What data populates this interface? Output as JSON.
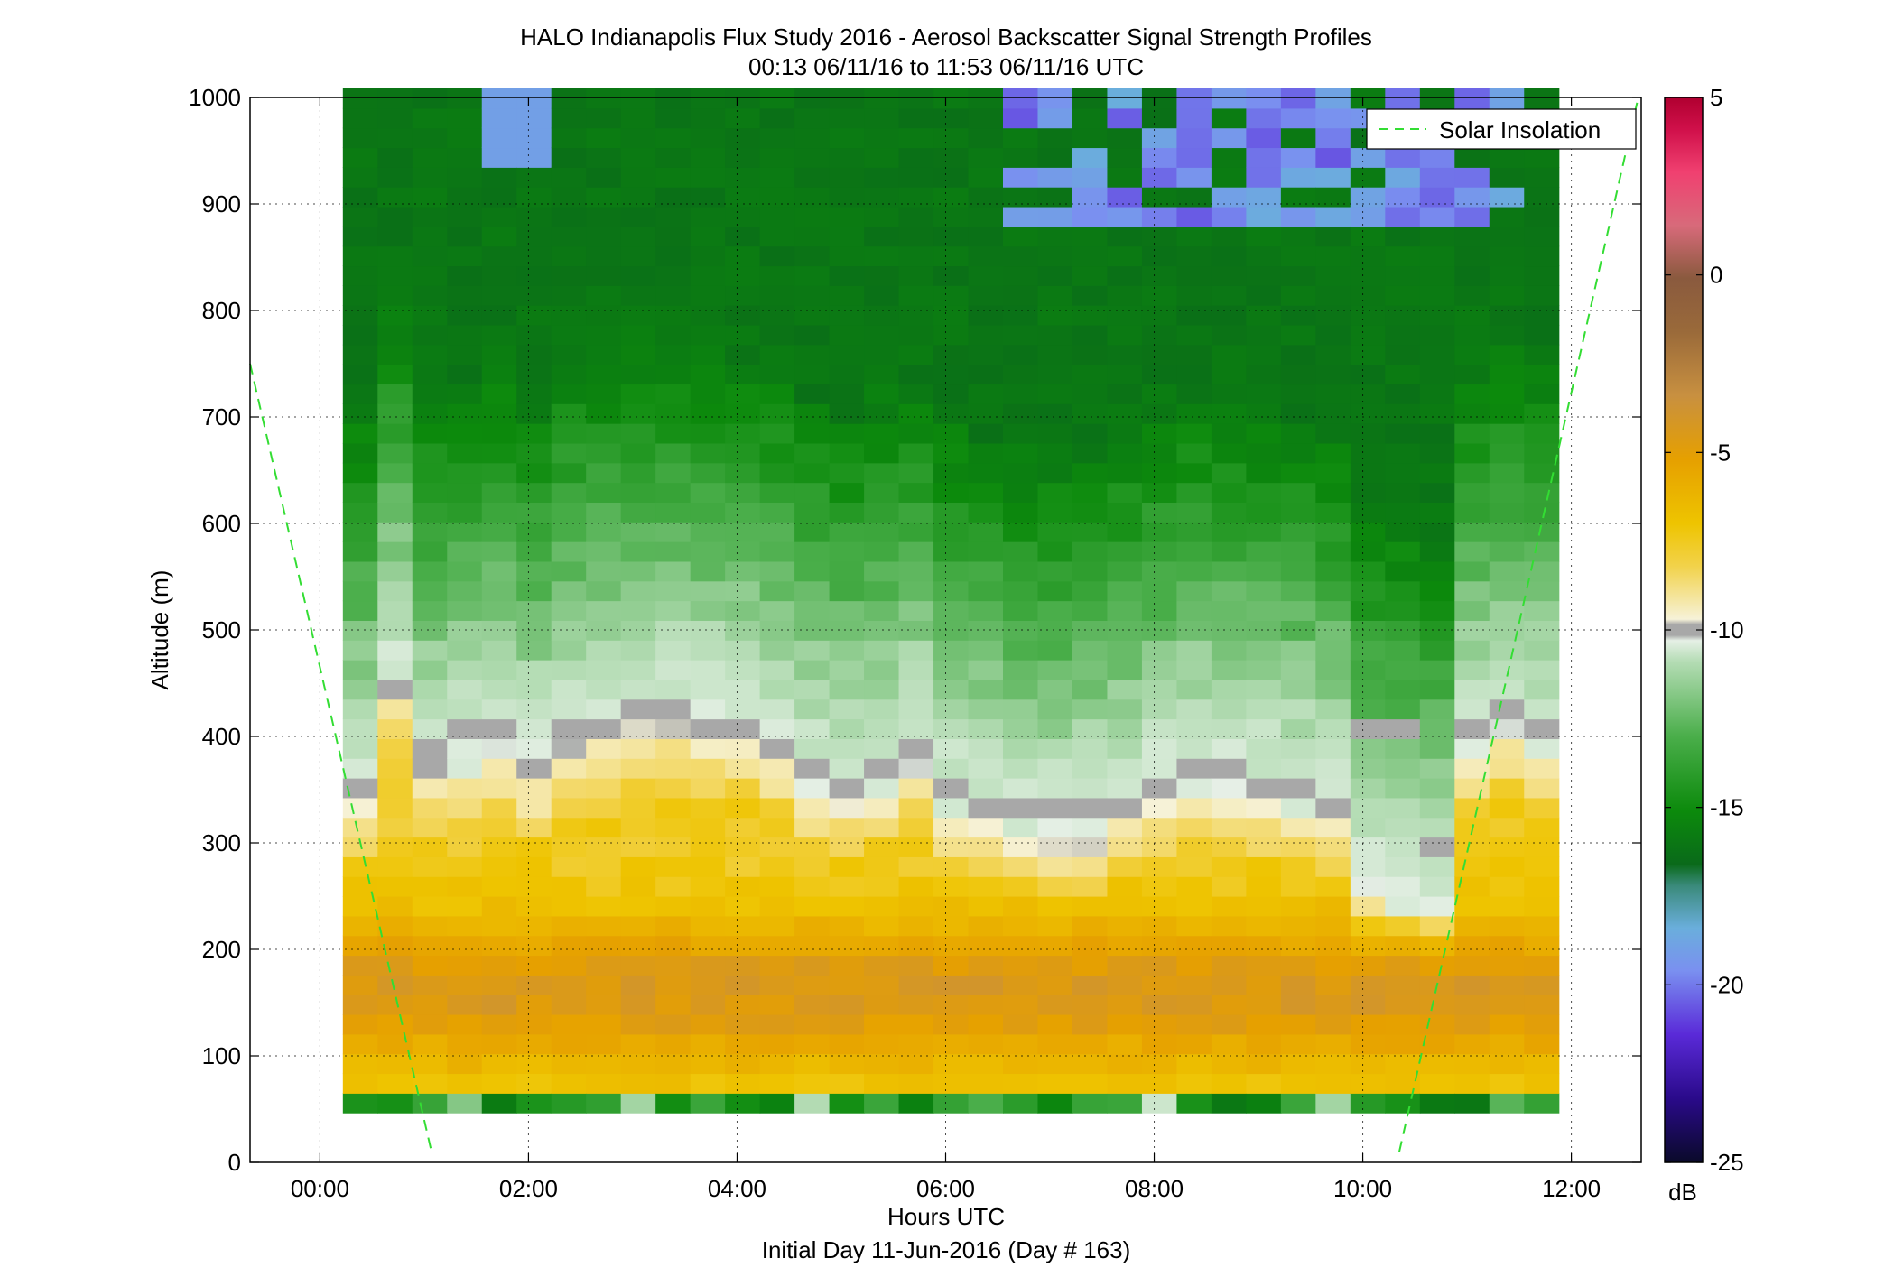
{
  "chart_data": {
    "type": "heatmap",
    "title": "HALO Indianapolis Flux Study 2016 - Aerosol Backscatter Signal Strength Profiles",
    "subtitle": "00:13 06/11/16 to 11:53 06/11/16  UTC",
    "xlabel": "Hours UTC",
    "xlabel2": "Initial Day 11-Jun-2016 (Day # 163)",
    "ylabel": "Altitude (m)",
    "xlim": [
      -0.67,
      12.67
    ],
    "ylim": [
      0,
      1000
    ],
    "x_ticks": [
      0,
      2,
      4,
      6,
      8,
      10,
      12
    ],
    "x_tick_labels": [
      "00:00",
      "02:00",
      "04:00",
      "06:00",
      "08:00",
      "10:00",
      "12:00"
    ],
    "y_ticks": [
      0,
      100,
      200,
      300,
      400,
      500,
      600,
      700,
      800,
      900,
      1000
    ],
    "y_tick_labels": [
      "0",
      "100",
      "200",
      "300",
      "400",
      "500",
      "600",
      "700",
      "800",
      "900",
      "1000"
    ],
    "grid": true,
    "colorbar": {
      "label": "dB",
      "range": [
        -25,
        5
      ],
      "ticks": [
        5,
        0,
        -5,
        -10,
        -15,
        -20,
        -25
      ],
      "tick_labels": [
        "5",
        "0",
        "-5",
        "-10",
        "-15",
        "-20",
        "-25"
      ]
    },
    "legend": {
      "position": "top-right",
      "entries": [
        {
          "name": "Solar Insolation",
          "color": "#33dd33",
          "style": "dashed"
        }
      ]
    },
    "solar_insolation": {
      "color": "#33dd33",
      "segments": [
        {
          "x": [
            -0.67,
            1.07
          ],
          "y": [
            750,
            10
          ]
        },
        {
          "x": [
            10.35,
            12.63
          ],
          "y": [
            10,
            995
          ]
        }
      ]
    },
    "time_range_hours": [
      0.22,
      11.88
    ],
    "altitude_range": [
      46,
      1000
    ],
    "profile_count": 35,
    "description_model": {
      "low_level_bins": 1,
      "low_level_top": 65,
      "gray_band_altitudes": [
        360,
        450,
        380,
        410,
        410,
        370,
        400,
        410,
        430,
        430,
        410,
        410,
        390,
        370,
        360,
        370,
        390,
        350,
        340,
        330,
        330,
        330,
        340,
        360,
        370,
        370,
        360,
        350,
        340,
        400,
        400,
        300,
        400,
        420,
        400
      ],
      "mixed_layer_top": [
        340,
        440,
        360,
        370,
        380,
        360,
        390,
        400,
        410,
        410,
        400,
        400,
        380,
        350,
        340,
        350,
        370,
        330,
        320,
        300,
        300,
        300,
        320,
        340,
        350,
        350,
        340,
        330,
        320,
        250,
        240,
        230,
        380,
        400,
        380
      ]
    }
  }
}
